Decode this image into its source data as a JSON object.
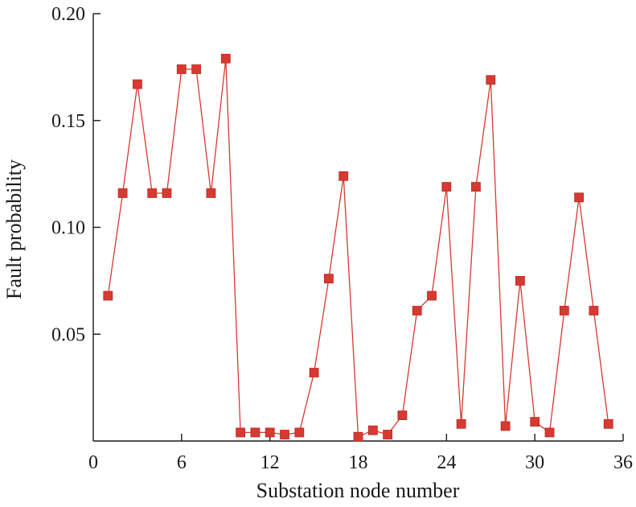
{
  "chart_data": {
    "type": "line",
    "title": "",
    "xlabel": "Substation node number",
    "ylabel": "Fault probability",
    "xlim": [
      0,
      36
    ],
    "ylim": [
      0,
      0.2
    ],
    "xticks": [
      0,
      6,
      12,
      18,
      24,
      30,
      36
    ],
    "xtick_labels": [
      "0",
      "6",
      "12",
      "18",
      "24",
      "30",
      "36"
    ],
    "yticks": [
      0.05,
      0.1,
      0.15,
      0.2
    ],
    "ytick_labels": [
      "0.05",
      "0.10",
      "0.15",
      "0.20"
    ],
    "grid": false,
    "legend": "none",
    "series": [
      {
        "color": "#d63a31",
        "marker": "square",
        "x": [
          1,
          2,
          3,
          4,
          5,
          6,
          7,
          8,
          9,
          10,
          11,
          12,
          13,
          14,
          15,
          16,
          17,
          18,
          19,
          20,
          21,
          22,
          23,
          24,
          25,
          26,
          27,
          28,
          29,
          30,
          31,
          32,
          33,
          34,
          35
        ],
        "y": [
          0.068,
          0.116,
          0.167,
          0.116,
          0.116,
          0.174,
          0.174,
          0.116,
          0.179,
          0.004,
          0.004,
          0.004,
          0.003,
          0.004,
          0.032,
          0.076,
          0.124,
          0.002,
          0.005,
          0.003,
          0.012,
          0.061,
          0.068,
          0.119,
          0.008,
          0.119,
          0.169,
          0.007,
          0.075,
          0.009,
          0.004,
          0.061,
          0.114,
          0.061,
          0.008
        ]
      }
    ]
  }
}
